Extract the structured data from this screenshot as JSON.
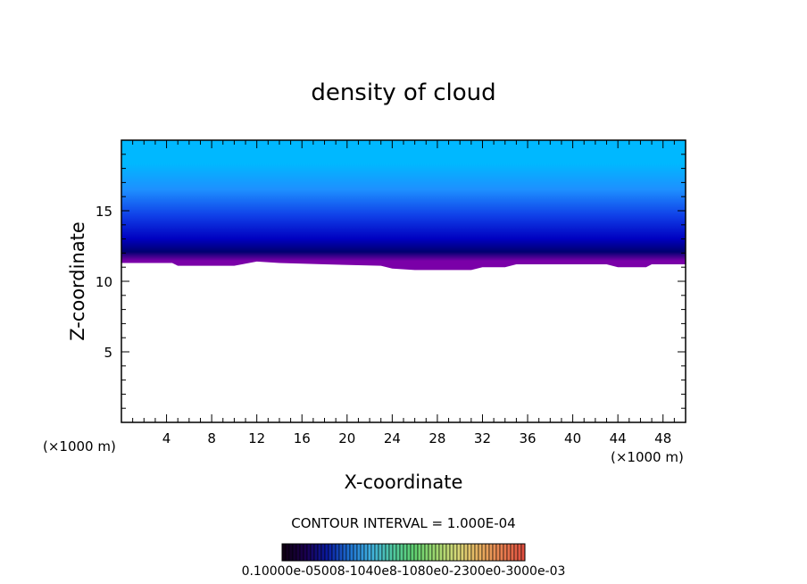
{
  "chart_data": {
    "type": "heatmap",
    "title": "density of cloud",
    "xlabel": "X-coordinate",
    "ylabel": "Z-coordinate",
    "x_unit_label_left": "(×1000 m)",
    "x_unit_label_right": "(×1000 m)",
    "xlim": [
      0,
      50
    ],
    "ylim": [
      0,
      20
    ],
    "x_ticks": [
      4,
      8,
      12,
      16,
      20,
      24,
      28,
      32,
      36,
      40,
      44,
      48
    ],
    "y_ticks": [
      5,
      10,
      15
    ],
    "cloud_top": 20,
    "cloud_base": [
      {
        "x": 0,
        "z": 11.3
      },
      {
        "x": 4.5,
        "z": 11.3
      },
      {
        "x": 5,
        "z": 11.1
      },
      {
        "x": 10,
        "z": 11.1
      },
      {
        "x": 12,
        "z": 11.4
      },
      {
        "x": 14,
        "z": 11.3
      },
      {
        "x": 18,
        "z": 11.2
      },
      {
        "x": 23,
        "z": 11.1
      },
      {
        "x": 24,
        "z": 10.9
      },
      {
        "x": 26,
        "z": 10.8
      },
      {
        "x": 31,
        "z": 10.8
      },
      {
        "x": 32,
        "z": 11.0
      },
      {
        "x": 34,
        "z": 11.0
      },
      {
        "x": 35,
        "z": 11.2
      },
      {
        "x": 43,
        "z": 11.2
      },
      {
        "x": 44,
        "z": 11.0
      },
      {
        "x": 46.5,
        "z": 11.0
      },
      {
        "x": 47,
        "z": 11.2
      },
      {
        "x": 50,
        "z": 11.2
      }
    ],
    "colors": {
      "top": "#00b8ff",
      "upper": "#1e90ff",
      "mid": "#1040e8",
      "deep": "#0000c0",
      "dark": "#000070",
      "base": "#7a00a8"
    },
    "contour_interval_text": "CONTOUR INTERVAL = 1.000E-04",
    "colorbar_labels": [
      "0.1000",
      "0.6000e-04",
      "0.1000e-03",
      "0.1800e-03",
      "0.2300e-03",
      "0.3000e-03"
    ],
    "colorbar_overlap_text": "0.10000e-05008-1040e8-1080e0-2300e0-3000e-03",
    "colorbar_colors": [
      "#100014",
      "#1a0050",
      "#0a1aa0",
      "#1e70d0",
      "#40b0e0",
      "#50c8a0",
      "#60d070",
      "#a0d870",
      "#d8d878",
      "#e8b060",
      "#e88050",
      "#e05040"
    ]
  }
}
